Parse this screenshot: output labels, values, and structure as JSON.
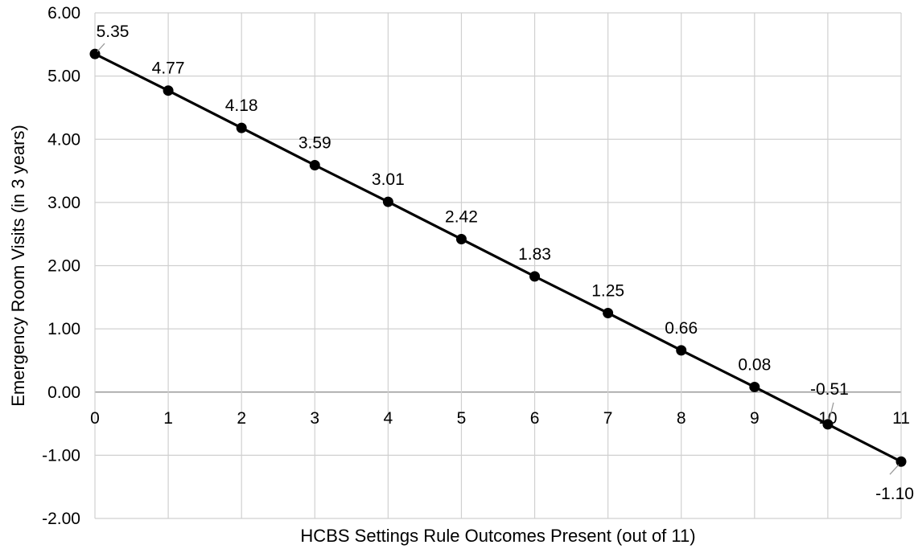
{
  "chart_data": {
    "type": "line",
    "title": "",
    "xlabel": "HCBS Settings Rule Outcomes Present (out of 11)",
    "ylabel": "Emergency Room Visits (in 3 years)",
    "x": [
      0,
      1,
      2,
      3,
      4,
      5,
      6,
      7,
      8,
      9,
      10,
      11
    ],
    "series": [
      {
        "values": [
          5.35,
          4.77,
          4.18,
          3.59,
          3.01,
          2.42,
          1.83,
          1.25,
          0.66,
          0.08,
          -0.51,
          -1.1
        ],
        "labels": [
          "5.35",
          "4.77",
          "4.18",
          "3.59",
          "3.01",
          "2.42",
          "1.83",
          "1.25",
          "0.66",
          "0.08",
          "-0.51",
          "-1.10"
        ],
        "color": "#000000"
      }
    ],
    "xlim": [
      0,
      11
    ],
    "ylim": [
      -2,
      6
    ],
    "x_ticks": [
      "0",
      "1",
      "2",
      "3",
      "4",
      "5",
      "6",
      "7",
      "8",
      "9",
      "10",
      "11"
    ],
    "y_ticks": [
      {
        "value": 6,
        "label": "6.00"
      },
      {
        "value": 5,
        "label": "5.00"
      },
      {
        "value": 4,
        "label": "4.00"
      },
      {
        "value": 3,
        "label": "3.00"
      },
      {
        "value": 2,
        "label": "2.00"
      },
      {
        "value": 1,
        "label": "1.00"
      },
      {
        "value": 0,
        "label": "0.00"
      },
      {
        "value": -1,
        "label": "-1.00"
      },
      {
        "value": -2,
        "label": "-2.00"
      }
    ],
    "grid": true,
    "legend": "none",
    "x_tick_position": "at y = 0"
  }
}
